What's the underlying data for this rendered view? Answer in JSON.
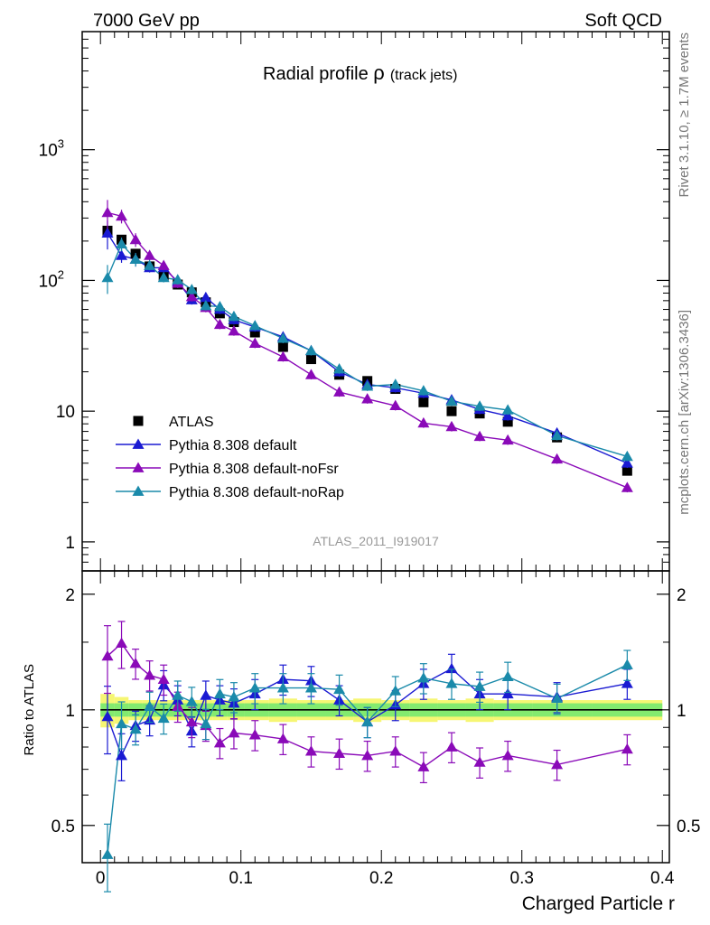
{
  "header": {
    "left": "7000 GeV pp",
    "right": "Soft QCD"
  },
  "side_labels": {
    "upper": "Rivet 3.1.10, ≥ 1.7M events",
    "lower": "mcplots.cern.ch [arXiv:1306.3436]"
  },
  "chart_data": [
    {
      "type": "scatter",
      "panel": "main",
      "title_main": "Radial profile ",
      "title_symbol": "ρ",
      "title_sub": "(track jets)",
      "watermark": "ATLAS_2011_I919017",
      "yscale": "log",
      "ylim": [
        0.6,
        8000
      ],
      "xlim": [
        -0.013,
        0.405
      ],
      "x_ticks": [
        "0",
        "0.1",
        "0.2",
        "0.3",
        "0.4"
      ],
      "y_ticks": [
        "1",
        "10",
        "10^2",
        "10^3"
      ],
      "colors": {
        "ATLAS": "#000000",
        "default": "#1a1ad2",
        "noFsr": "#8a0ab8",
        "noRap": "#1a8aaa"
      },
      "x": [
        0.005,
        0.015,
        0.025,
        0.035,
        0.045,
        0.055,
        0.065,
        0.075,
        0.085,
        0.095,
        0.11,
        0.13,
        0.15,
        0.17,
        0.19,
        0.21,
        0.23,
        0.25,
        0.27,
        0.29,
        0.325,
        0.375
      ],
      "series": [
        {
          "name": "ATLAS",
          "key": "ATLAS",
          "marker": "square",
          "values": [
            240,
            205,
            160,
            128,
            108,
            93,
            81,
            68,
            56,
            48,
            40,
            31,
            25,
            19,
            17,
            14.8,
            11.7,
            10.0,
            9.6,
            8.3,
            6.3,
            3.5
          ]
        },
        {
          "name": "Pythia 8.308 default",
          "key": "default",
          "marker": "triangle",
          "values": [
            230,
            155,
            145,
            125,
            125,
            98,
            71,
            74,
            60,
            50,
            44,
            37,
            29,
            20,
            16,
            15.1,
            13.7,
            12.2,
            10.3,
            9.2,
            6.8,
            4.0
          ]
        },
        {
          "name": "Pythia 8.308 default-noFsr",
          "key": "noFsr",
          "marker": "triangle",
          "values": [
            330,
            310,
            205,
            155,
            130,
            95,
            75,
            62,
            46,
            41,
            33,
            26,
            19,
            14,
            12.4,
            11,
            8.1,
            7.6,
            6.4,
            6.0,
            4.3,
            2.6
          ]
        },
        {
          "name": "Pythia 8.308 default-noRap",
          "key": "noRap",
          "marker": "triangle",
          "values": [
            105,
            190,
            145,
            130,
            105,
            101,
            85,
            64,
            63,
            53,
            45,
            36,
            29,
            21,
            15.5,
            16,
            14.3,
            11.9,
            10.9,
            10.2,
            6.5,
            4.5
          ]
        }
      ],
      "legend": [
        {
          "label": "ATLAS",
          "key": "ATLAS",
          "marker": "square"
        },
        {
          "label": "Pythia 8.308 default",
          "key": "default",
          "marker": "triangle"
        },
        {
          "label": "Pythia 8.308 default-noFsr",
          "key": "noFsr",
          "marker": "triangle"
        },
        {
          "label": "Pythia 8.308 default-noRap",
          "key": "noRap",
          "marker": "triangle"
        }
      ]
    },
    {
      "type": "scatter",
      "panel": "ratio",
      "ylabel": "Ratio to ATLAS",
      "xlabel": "Charged Particle r",
      "ylim": [
        0.4,
        2.3
      ],
      "yscale": "log",
      "xlim": [
        -0.013,
        0.405
      ],
      "y_ticks": [
        "0.5",
        "1",
        "2"
      ],
      "x_ticks": [
        "0",
        "0.1",
        "0.2",
        "0.3",
        "0.4"
      ],
      "x": [
        0.005,
        0.015,
        0.025,
        0.035,
        0.045,
        0.055,
        0.065,
        0.075,
        0.085,
        0.095,
        0.11,
        0.13,
        0.15,
        0.17,
        0.19,
        0.21,
        0.23,
        0.25,
        0.27,
        0.29,
        0.325,
        0.375
      ],
      "series": [
        {
          "name": "Pythia 8.308 default",
          "key": "default",
          "values": [
            0.96,
            0.76,
            0.91,
            0.94,
            1.16,
            1.06,
            0.88,
            1.09,
            1.06,
            1.04,
            1.1,
            1.2,
            1.19,
            1.06,
            0.93,
            1.03,
            1.17,
            1.28,
            1.1,
            1.1,
            1.08,
            1.17
          ]
        },
        {
          "name": "Pythia 8.308 default-noFsr",
          "key": "noFsr",
          "values": [
            1.38,
            1.49,
            1.32,
            1.23,
            1.2,
            1.02,
            0.93,
            0.91,
            0.82,
            0.87,
            0.86,
            0.84,
            0.78,
            0.77,
            0.76,
            0.78,
            0.71,
            0.8,
            0.73,
            0.76,
            0.72,
            0.79
          ]
        },
        {
          "name": "Pythia 8.308 default-noRap",
          "key": "noRap",
          "values": [
            0.42,
            0.92,
            0.89,
            1.02,
            0.95,
            1.09,
            1.05,
            0.92,
            1.1,
            1.08,
            1.14,
            1.14,
            1.14,
            1.13,
            0.93,
            1.12,
            1.21,
            1.17,
            1.15,
            1.22,
            1.07,
            1.31
          ]
        }
      ]
    }
  ]
}
